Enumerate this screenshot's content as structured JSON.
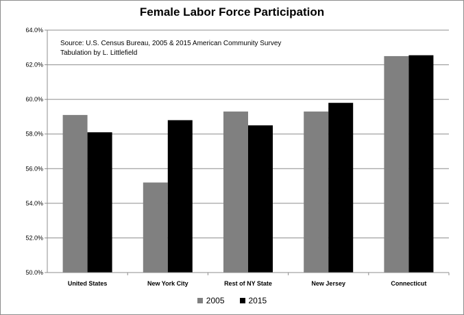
{
  "chart_data": {
    "type": "bar",
    "title": "Female Labor Force Participation",
    "annotation": [
      "Source:  U.S. Census Bureau, 2005 & 2015 American Community Survey",
      "Tabulation by L. Littlefield"
    ],
    "categories": [
      "United States",
      "New York City",
      "Rest of NY State",
      "New Jersey",
      "Connecticut"
    ],
    "series": [
      {
        "name": "2005",
        "values": [
          59.1,
          55.2,
          59.3,
          59.3,
          62.5
        ],
        "color": "#808080"
      },
      {
        "name": "2015",
        "values": [
          58.1,
          58.8,
          58.5,
          59.8,
          62.55
        ],
        "color": "#000000"
      }
    ],
    "ylim": [
      50.0,
      64.0
    ],
    "yticks": [
      "50.0%",
      "52.0%",
      "54.0%",
      "56.0%",
      "58.0%",
      "60.0%",
      "62.0%",
      "64.0%"
    ],
    "grid": true,
    "legend": "bottom"
  }
}
